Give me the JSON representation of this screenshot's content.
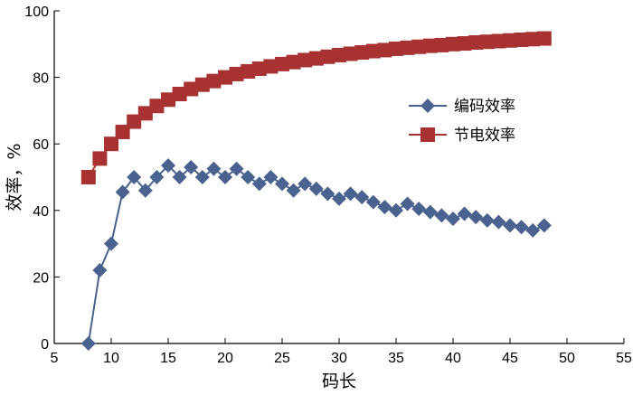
{
  "chart_data": {
    "type": "line",
    "xlabel": "码长",
    "ylabel": "效率，%",
    "xlim": [
      5,
      55
    ],
    "ylim": [
      0,
      100
    ],
    "xticks": [
      5,
      10,
      15,
      20,
      25,
      30,
      35,
      40,
      45,
      50,
      55
    ],
    "yticks": [
      0,
      20,
      40,
      60,
      80,
      100
    ],
    "grid": false,
    "legend_position": "right-middle",
    "series": [
      {
        "name": "编码效率",
        "color": "#4a6290",
        "marker": "diamond",
        "x": [
          8,
          9,
          10,
          11,
          12,
          13,
          14,
          15,
          16,
          17,
          18,
          19,
          20,
          21,
          22,
          23,
          24,
          25,
          26,
          27,
          28,
          29,
          30,
          31,
          32,
          33,
          34,
          35,
          36,
          37,
          38,
          39,
          40,
          41,
          42,
          43,
          44,
          45,
          46,
          47,
          48
        ],
        "y": [
          0,
          22,
          30,
          45.5,
          50,
          46,
          50,
          53.5,
          50,
          53,
          50,
          52.5,
          50,
          52.5,
          50,
          48,
          50,
          48,
          46,
          48,
          46.5,
          45,
          43.5,
          45,
          44,
          42.5,
          41,
          40,
          42,
          40.5,
          39.5,
          38.5,
          37.5,
          39,
          38,
          37,
          36.5,
          35.5,
          35,
          34,
          35.5
        ]
      },
      {
        "name": "节电效率",
        "color": "#a83232",
        "marker": "square",
        "x": [
          8,
          9,
          10,
          11,
          12,
          13,
          14,
          15,
          16,
          17,
          18,
          19,
          20,
          21,
          22,
          23,
          24,
          25,
          26,
          27,
          28,
          29,
          30,
          31,
          32,
          33,
          34,
          35,
          36,
          37,
          38,
          39,
          40,
          41,
          42,
          43,
          44,
          45,
          46,
          47,
          48
        ],
        "y": [
          50,
          55.6,
          60,
          63.6,
          66.7,
          69.2,
          71.4,
          73.3,
          75,
          76.5,
          77.8,
          78.9,
          80,
          81,
          81.8,
          82.6,
          83.3,
          84,
          84.6,
          85.2,
          85.7,
          86.2,
          86.7,
          87.1,
          87.5,
          87.9,
          88.2,
          88.6,
          88.9,
          89.2,
          89.5,
          89.7,
          90,
          90.2,
          90.5,
          90.7,
          90.9,
          91.1,
          91.3,
          91.5,
          91.7
        ]
      }
    ]
  }
}
